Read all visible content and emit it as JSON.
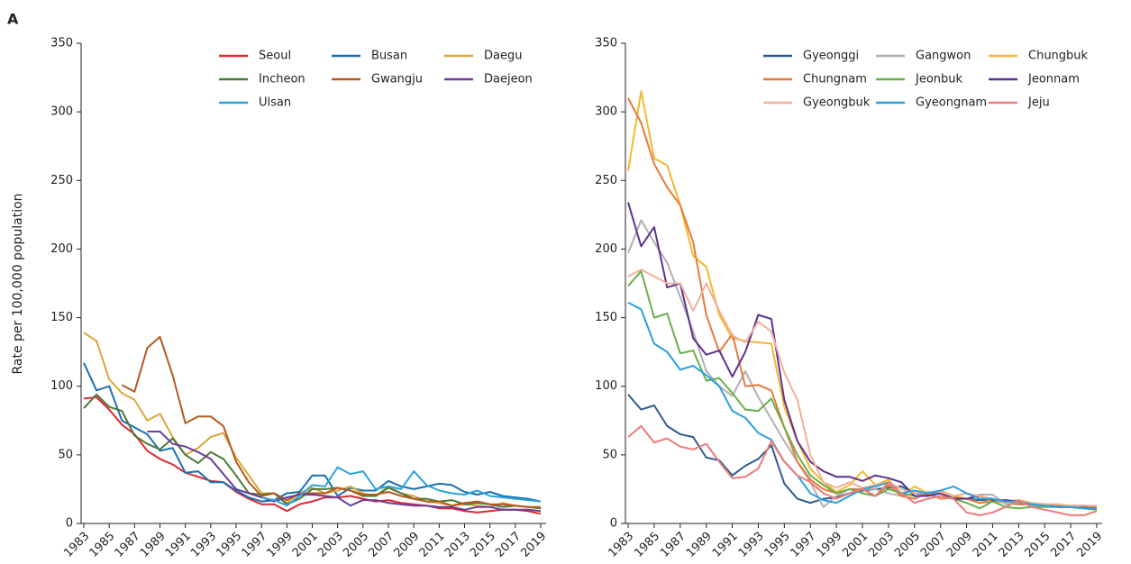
{
  "panel_label": "A",
  "chart_data": [
    {
      "type": "line",
      "ylabel": "Rate per 100,000 population",
      "x": [
        1983,
        1984,
        1985,
        1986,
        1987,
        1988,
        1989,
        1990,
        1991,
        1992,
        1993,
        1994,
        1995,
        1996,
        1997,
        1998,
        1999,
        2000,
        2001,
        2002,
        2003,
        2004,
        2005,
        2006,
        2007,
        2008,
        2009,
        2010,
        2011,
        2012,
        2013,
        2014,
        2015,
        2016,
        2017,
        2018,
        2019
      ],
      "xlim": [
        1983,
        2019
      ],
      "xticks": [
        1983,
        1985,
        1987,
        1989,
        1991,
        1993,
        1995,
        1997,
        1999,
        2001,
        2003,
        2005,
        2007,
        2009,
        2011,
        2013,
        2015,
        2017,
        2019
      ],
      "ylim": [
        0,
        350
      ],
      "yticks": [
        0,
        50,
        100,
        150,
        200,
        250,
        300,
        350
      ],
      "series": [
        {
          "name": "Seoul",
          "color": "#e0282e",
          "values": [
            91,
            92,
            83,
            72,
            65,
            53,
            47,
            43,
            37,
            34,
            31,
            30,
            23,
            18,
            14,
            14,
            9,
            14,
            16,
            19,
            19,
            20,
            18,
            16,
            17,
            15,
            14,
            13,
            11,
            11,
            9,
            8,
            9,
            10,
            10,
            9,
            7
          ]
        },
        {
          "name": "Busan",
          "color": "#1a6fb0",
          "values": [
            117,
            97,
            100,
            75,
            70,
            65,
            53,
            55,
            37,
            38,
            30,
            30,
            24,
            19,
            16,
            17,
            22,
            23,
            35,
            35,
            20,
            26,
            24,
            24,
            31,
            27,
            25,
            27,
            29,
            28,
            23,
            21,
            23,
            20,
            19,
            18,
            16
          ]
        },
        {
          "name": "Daegu",
          "color": "#d9a73a",
          "values": [
            139,
            133,
            105,
            95,
            90,
            75,
            80,
            63,
            50,
            55,
            63,
            66,
            48,
            35,
            22,
            22,
            15,
            22,
            26,
            22,
            24,
            27,
            22,
            20,
            27,
            22,
            20,
            16,
            15,
            13,
            14,
            13,
            12,
            15,
            13,
            12,
            11
          ]
        },
        {
          "name": "Incheon",
          "color": "#4a7a3a",
          "values": [
            84,
            94,
            85,
            82,
            64,
            58,
            54,
            62,
            50,
            44,
            52,
            47,
            35,
            22,
            21,
            22,
            14,
            18,
            25,
            25,
            26,
            24,
            20,
            20,
            26,
            22,
            18,
            18,
            16,
            17,
            14,
            15,
            14,
            12,
            13,
            12,
            11
          ]
        },
        {
          "name": "Gwangju",
          "color": "#b5591e",
          "values": [
            null,
            null,
            null,
            101,
            96,
            128,
            136,
            108,
            73,
            78,
            78,
            71,
            45,
            30,
            20,
            22,
            17,
            22,
            22,
            22,
            26,
            24,
            21,
            21,
            23,
            20,
            18,
            16,
            16,
            13,
            15,
            16,
            14,
            14,
            13,
            12,
            12
          ]
        },
        {
          "name": "Daejeon",
          "color": "#6c3d9a",
          "values": [
            null,
            null,
            null,
            null,
            null,
            67,
            67,
            58,
            56,
            52,
            47,
            36,
            25,
            22,
            19,
            16,
            19,
            21,
            21,
            20,
            19,
            13,
            17,
            17,
            15,
            14,
            13,
            13,
            12,
            12,
            10,
            12,
            12,
            10,
            10,
            10,
            9
          ]
        },
        {
          "name": "Ulsan",
          "color": "#2aa4d8",
          "values": [
            null,
            null,
            null,
            null,
            null,
            null,
            null,
            null,
            null,
            null,
            null,
            null,
            null,
            null,
            19,
            17,
            13,
            20,
            28,
            27,
            41,
            36,
            38,
            25,
            27,
            25,
            38,
            28,
            24,
            22,
            21,
            24,
            20,
            19,
            18,
            17,
            16
          ]
        }
      ]
    },
    {
      "type": "line",
      "x": [
        1983,
        1984,
        1985,
        1986,
        1987,
        1988,
        1989,
        1990,
        1991,
        1992,
        1993,
        1994,
        1995,
        1996,
        1997,
        1998,
        1999,
        2000,
        2001,
        2002,
        2003,
        2004,
        2005,
        2006,
        2007,
        2008,
        2009,
        2010,
        2011,
        2012,
        2013,
        2014,
        2015,
        2016,
        2017,
        2018,
        2019
      ],
      "xlim": [
        1983,
        2019
      ],
      "xticks": [
        1983,
        1985,
        1987,
        1989,
        1991,
        1993,
        1995,
        1997,
        1999,
        2001,
        2003,
        2005,
        2007,
        2009,
        2011,
        2013,
        2015,
        2017,
        2019
      ],
      "ylim": [
        0,
        350
      ],
      "yticks": [
        0,
        50,
        100,
        150,
        200,
        250,
        300,
        350
      ],
      "series": [
        {
          "name": "Gyeonggi",
          "color": "#2f5b8f",
          "values": [
            94,
            83,
            86,
            71,
            65,
            63,
            48,
            46,
            35,
            42,
            47,
            57,
            29,
            18,
            15,
            18,
            19,
            22,
            24,
            25,
            26,
            27,
            22,
            21,
            22,
            20,
            18,
            17,
            17,
            15,
            14,
            14,
            13,
            13,
            12,
            12,
            11
          ]
        },
        {
          "name": "Gangwon",
          "color": "#b0b0b0",
          "values": [
            197,
            221,
            205,
            190,
            165,
            140,
            111,
            100,
            93,
            111,
            92,
            76,
            60,
            45,
            30,
            12,
            20,
            25,
            25,
            25,
            22,
            20,
            22,
            22,
            23,
            20,
            18,
            21,
            21,
            14,
            15,
            13,
            13,
            12,
            12,
            11,
            10
          ]
        },
        {
          "name": "Chungbuk",
          "color": "#f2b82e",
          "values": [
            257,
            315,
            266,
            261,
            232,
            195,
            187,
            152,
            135,
            133,
            132,
            131,
            85,
            60,
            40,
            30,
            23,
            28,
            38,
            28,
            32,
            20,
            27,
            22,
            24,
            20,
            18,
            15,
            17,
            16,
            17,
            15,
            14,
            14,
            13,
            13,
            12
          ]
        },
        {
          "name": "Chungnam",
          "color": "#e67a3c",
          "values": [
            310,
            292,
            262,
            245,
            232,
            205,
            152,
            125,
            138,
            100,
            101,
            97,
            70,
            45,
            32,
            25,
            22,
            25,
            25,
            20,
            28,
            20,
            18,
            22,
            18,
            19,
            18,
            15,
            16,
            16,
            14,
            15,
            14,
            13,
            13,
            13,
            12
          ]
        },
        {
          "name": "Jeonbuk",
          "color": "#69b04a",
          "values": [
            173,
            184,
            150,
            153,
            124,
            126,
            104,
            106,
            95,
            83,
            82,
            91,
            70,
            50,
            35,
            28,
            22,
            25,
            22,
            20,
            25,
            22,
            20,
            20,
            22,
            18,
            15,
            11,
            16,
            12,
            11,
            12,
            12,
            12,
            12,
            11,
            10
          ]
        },
        {
          "name": "Jeonnam",
          "color": "#5a3290",
          "values": [
            234,
            202,
            216,
            172,
            175,
            135,
            123,
            126,
            107,
            125,
            152,
            149,
            90,
            60,
            45,
            38,
            34,
            34,
            31,
            35,
            33,
            30,
            20,
            20,
            22,
            18,
            18,
            20,
            17,
            17,
            16,
            14,
            14,
            12,
            12,
            11,
            11
          ]
        },
        {
          "name": "Gyeongbuk",
          "color": "#f0b09a",
          "values": [
            180,
            185,
            180,
            175,
            175,
            155,
            175,
            155,
            137,
            132,
            147,
            140,
            110,
            90,
            50,
            30,
            26,
            30,
            26,
            28,
            30,
            25,
            22,
            23,
            23,
            20,
            22,
            20,
            18,
            15,
            16,
            15,
            14,
            14,
            13,
            13,
            13
          ]
        },
        {
          "name": "Gyeongnam",
          "color": "#2aa0dc",
          "values": [
            161,
            156,
            131,
            125,
            112,
            115,
            108,
            100,
            82,
            77,
            66,
            61,
            45,
            35,
            22,
            17,
            15,
            20,
            25,
            27,
            30,
            22,
            24,
            22,
            24,
            27,
            22,
            18,
            18,
            16,
            16,
            14,
            13,
            12,
            12,
            11,
            11
          ]
        },
        {
          "name": "Jeju",
          "color": "#ec7a7a",
          "values": [
            63,
            71,
            59,
            62,
            56,
            54,
            58,
            45,
            33,
            34,
            40,
            60,
            45,
            35,
            30,
            22,
            18,
            22,
            25,
            20,
            30,
            22,
            15,
            18,
            20,
            18,
            8,
            6,
            8,
            12,
            17,
            12,
            10,
            8,
            6,
            6,
            9
          ]
        }
      ]
    }
  ]
}
